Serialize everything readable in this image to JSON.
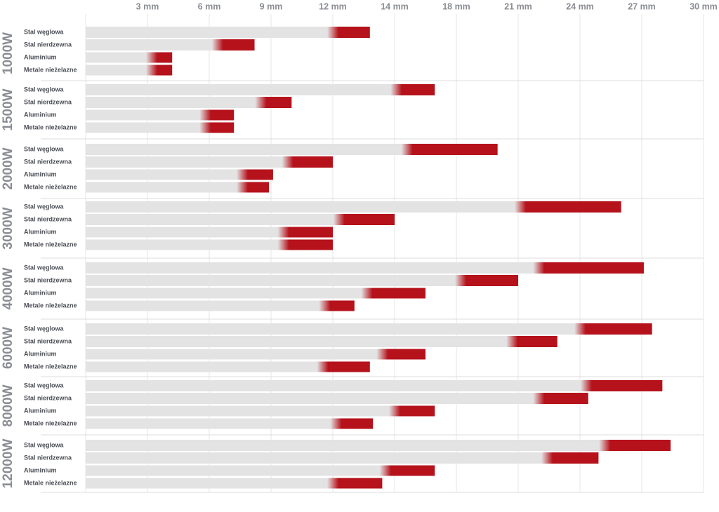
{
  "chart_data": {
    "type": "range-bar",
    "xlim": [
      0,
      30
    ],
    "xticks": [
      {
        "value": 3,
        "label": "3 mm"
      },
      {
        "value": 6,
        "label": "6 mm"
      },
      {
        "value": 9,
        "label": "9 mm"
      },
      {
        "value": 12,
        "label": "12 mm"
      },
      {
        "value": 14,
        "label": "14 mm"
      },
      {
        "value": 18,
        "label": "18 mm"
      },
      {
        "value": 21,
        "label": "21 mm"
      },
      {
        "value": 24,
        "label": "24 mm"
      },
      {
        "value": 27,
        "label": "27 mm"
      },
      {
        "value": 30,
        "label": "30 mm"
      }
    ],
    "color": "#b5121b",
    "track_color": "#e3e3e3",
    "grid": true,
    "groups": [
      {
        "label": "1000W",
        "bars": [
          {
            "material": "Stal węglowa",
            "values": [
              12,
              13.2
            ]
          },
          {
            "material": "Stal nierdzewna",
            "values": [
              6.4,
              8.2
            ]
          },
          {
            "material": "Aluminium",
            "values": [
              3.2,
              4.2
            ]
          },
          {
            "material": "Metale nieżelazne",
            "values": [
              3.2,
              4.2
            ]
          }
        ]
      },
      {
        "label": "1500W",
        "bars": [
          {
            "material": "Stal węglowa",
            "values": [
              14.1,
              16.6
            ]
          },
          {
            "material": "Stal nierdzewna",
            "values": [
              8.5,
              10
            ]
          },
          {
            "material": "Aluminium",
            "values": [
              5.8,
              7.2
            ]
          },
          {
            "material": "Metale nieżelazne",
            "values": [
              5.8,
              7.2
            ]
          }
        ]
      },
      {
        "label": "2000W",
        "bars": [
          {
            "material": "Stal węglowa",
            "values": [
              14.8,
              20
            ]
          },
          {
            "material": "Stal nierdzewna",
            "values": [
              9.8,
              12
            ]
          },
          {
            "material": "Aluminium",
            "values": [
              7.6,
              9.1
            ]
          },
          {
            "material": "Metale nieżelazne",
            "values": [
              7.6,
              8.9
            ]
          }
        ]
      },
      {
        "label": "3000W",
        "bars": [
          {
            "material": "Stal węglowa",
            "values": [
              21.1,
              26
            ]
          },
          {
            "material": "Stal nierdzewna",
            "values": [
              12.2,
              14
            ]
          },
          {
            "material": "Aluminium",
            "values": [
              9.6,
              12
            ]
          },
          {
            "material": "Metale nieżelazne",
            "values": [
              9.6,
              12
            ]
          }
        ]
      },
      {
        "label": "4000W",
        "bars": [
          {
            "material": "Stal węglowa",
            "values": [
              22,
              27.1
            ]
          },
          {
            "material": "Stal nierdzewna",
            "values": [
              18.2,
              21
            ]
          },
          {
            "material": "Aluminium",
            "values": [
              13.1,
              16
            ]
          },
          {
            "material": "Metale nieżelazne",
            "values": [
              11.6,
              12.7
            ]
          }
        ]
      },
      {
        "label": "6000W",
        "bars": [
          {
            "material": "Stal węglowa",
            "values": [
              24,
              27.5
            ]
          },
          {
            "material": "Stal nierdzewna",
            "values": [
              20.7,
              22.9
            ]
          },
          {
            "material": "Aluminium",
            "values": [
              13.6,
              16
            ]
          },
          {
            "material": "Metale nieżelazne",
            "values": [
              11.5,
              13.2
            ]
          }
        ]
      },
      {
        "label": "8000W",
        "bars": [
          {
            "material": "Stal węglowa",
            "values": [
              24.3,
              28
            ]
          },
          {
            "material": "Stal nierdzewna",
            "values": [
              22,
              24.4
            ]
          },
          {
            "material": "Aluminium",
            "values": [
              14,
              16.6
            ]
          },
          {
            "material": "Metale nieżelazne",
            "values": [
              12.1,
              13.3
            ]
          }
        ]
      },
      {
        "label": "12000W",
        "bars": [
          {
            "material": "Stal węglowa",
            "values": [
              25.2,
              28.4
            ]
          },
          {
            "material": "Stal nierdzewna",
            "values": [
              22.4,
              24.9
            ]
          },
          {
            "material": "Aluminium",
            "values": [
              13.7,
              16.6
            ]
          },
          {
            "material": "Metale nieżelazne",
            "values": [
              12,
              13.6
            ]
          }
        ]
      }
    ]
  }
}
